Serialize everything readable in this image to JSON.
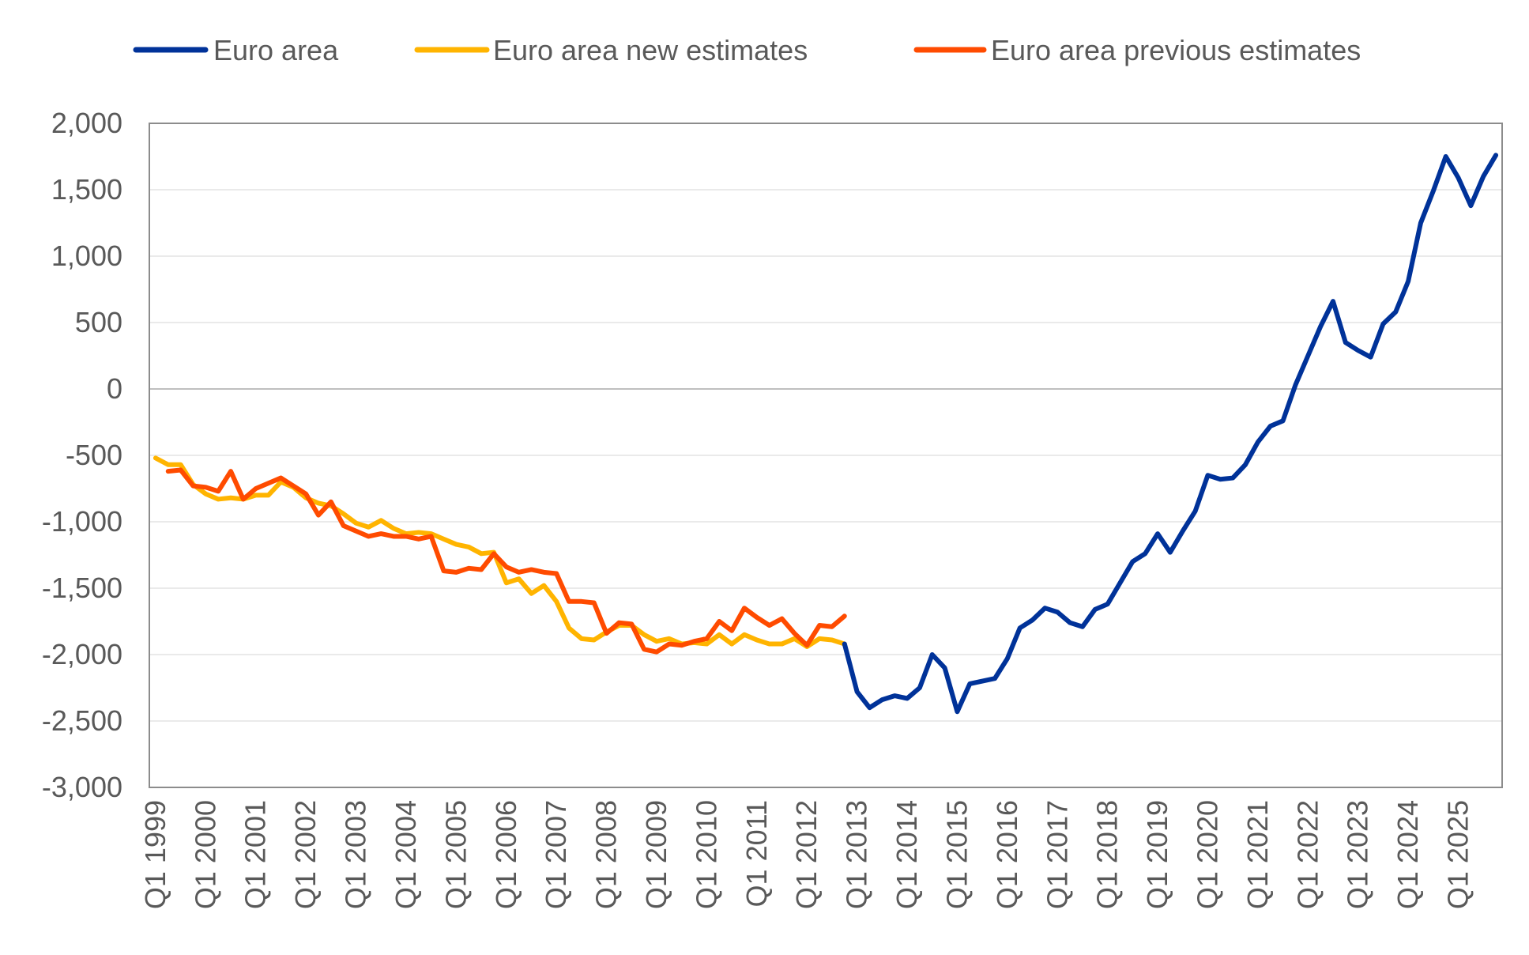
{
  "chart_data": {
    "type": "line",
    "title": "",
    "xlabel": "",
    "ylabel": "",
    "ylim": [
      -3000,
      2000
    ],
    "yticks": [
      2000,
      1500,
      1000,
      500,
      0,
      -500,
      -1000,
      -1500,
      -2000,
      -2500,
      -3000
    ],
    "ytick_labels": [
      "2,000",
      "1,500",
      "1,000",
      "500",
      "0",
      "-500",
      "-1,000",
      "-1,500",
      "-2,000",
      "-2,500",
      "-3,000"
    ],
    "x_start": "Q1 1999",
    "x_end": "Q4 2025",
    "xtick_labels": [
      "Q1 1999",
      "Q1 2000",
      "Q1 2001",
      "Q1 2002",
      "Q1 2003",
      "Q1 2004",
      "Q1 2005",
      "Q1 2006",
      "Q1 2007",
      "Q1 2008",
      "Q1 2009",
      "Q1 2010",
      "Q1 2011",
      "Q1 2012",
      "Q1 2013",
      "Q1 2014",
      "Q1 2015",
      "Q1 2016",
      "Q1 2017",
      "Q1 2018",
      "Q1 2019",
      "Q1 2020",
      "Q1 2021",
      "Q1 2022",
      "Q1 2023",
      "Q1 2024",
      "Q1 2025"
    ],
    "grid": true,
    "legend_position": "top",
    "series": [
      {
        "name": "Euro area",
        "color": "#003299",
        "start": "Q4 2012",
        "values": [
          -1920,
          -2280,
          -2400,
          -2340,
          -2310,
          -2330,
          -2250,
          -2000,
          -2100,
          -2430,
          -2220,
          -2200,
          -2180,
          -2030,
          -1800,
          -1740,
          -1650,
          -1680,
          -1760,
          -1790,
          -1660,
          -1620,
          -1460,
          -1300,
          -1240,
          -1090,
          -1230,
          -1070,
          -920,
          -650,
          -680,
          -670,
          -570,
          -400,
          -280,
          -240,
          30,
          250,
          470,
          660,
          350,
          290,
          240,
          490,
          580,
          810,
          1250,
          1490,
          1750,
          1590,
          1380,
          1600,
          1760
        ]
      },
      {
        "name": "Euro area new estimates",
        "color": "#FFB400",
        "start": "Q1 1999",
        "values": [
          -520,
          -570,
          -570,
          -720,
          -790,
          -830,
          -820,
          -830,
          -800,
          -800,
          -700,
          -740,
          -820,
          -860,
          -880,
          -940,
          -1010,
          -1040,
          -990,
          -1050,
          -1090,
          -1080,
          -1090,
          -1130,
          -1170,
          -1190,
          -1240,
          -1230,
          -1460,
          -1430,
          -1540,
          -1480,
          -1600,
          -1800,
          -1880,
          -1890,
          -1830,
          -1780,
          -1780,
          -1850,
          -1900,
          -1880,
          -1920,
          -1910,
          -1920,
          -1850,
          -1920,
          -1850,
          -1890,
          -1920,
          -1920,
          -1880,
          -1940,
          -1880,
          -1890,
          -1920
        ]
      },
      {
        "name": "Euro area previous estimates",
        "color": "#FF4B00",
        "start": "Q2 1999",
        "values": [
          -620,
          -610,
          -730,
          -740,
          -770,
          -620,
          -830,
          -750,
          -710,
          -670,
          -730,
          -790,
          -950,
          -850,
          -1030,
          -1070,
          -1110,
          -1090,
          -1110,
          -1110,
          -1130,
          -1110,
          -1370,
          -1380,
          -1350,
          -1360,
          -1240,
          -1340,
          -1380,
          -1360,
          -1380,
          -1390,
          -1600,
          -1600,
          -1610,
          -1840,
          -1760,
          -1770,
          -1960,
          -1980,
          -1920,
          -1930,
          -1900,
          -1880,
          -1750,
          -1820,
          -1650,
          -1720,
          -1780,
          -1730,
          -1840,
          -1930,
          -1780,
          -1790,
          -1710
        ]
      }
    ]
  }
}
